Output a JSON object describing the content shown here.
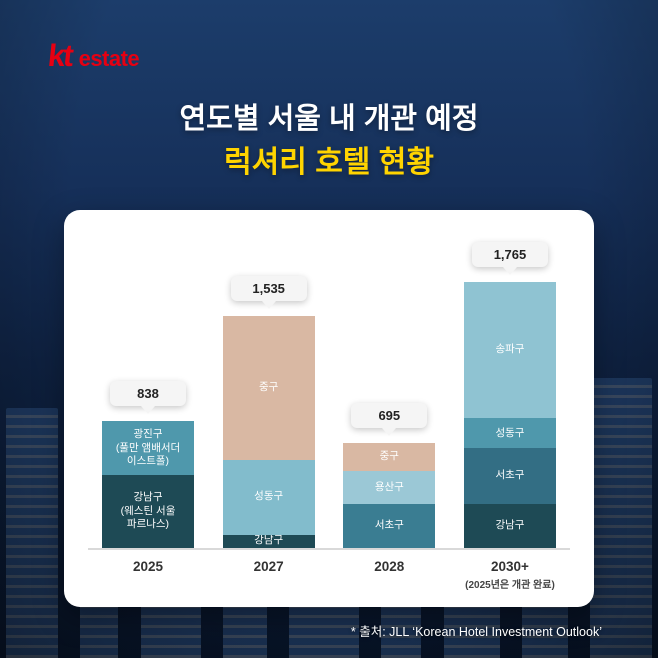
{
  "brand": {
    "kt": "kt",
    "estate": "estate"
  },
  "title": {
    "line1": "연도별 서울 내 개관 예정",
    "line2": "럭셔리 호텔 현황"
  },
  "source": "* 출처: JLL ‘Korean Hotel Investment Outlook’",
  "colors": {
    "brand_red": "#e60012",
    "accent_yellow": "#ffd400",
    "callout_bg": "#f5f5f5",
    "axis": "#d9d9d9",
    "background_navy": "#0f2344"
  },
  "chart_data": {
    "type": "bar",
    "stacked": true,
    "title": "연도별 서울 내 개관 예정 럭셔리 호텔 현황",
    "xlabel": "",
    "ylabel": "",
    "grid": false,
    "legend_position": "none",
    "categories": [
      "2025",
      "2027",
      "2028",
      "2030+"
    ],
    "category_notes": [
      "",
      "",
      "",
      "(2025년은 개관 완료)"
    ],
    "totals": [
      838,
      1535,
      695,
      1765
    ],
    "total_labels": [
      "838",
      "1,535",
      "695",
      "1,765"
    ],
    "bars": [
      {
        "category": "2025",
        "note": "",
        "total": 838,
        "total_label": "838",
        "segments": [
          {
            "district": "강남구",
            "hotel": "웨스틴 서울 파르나스",
            "label": "강남구\n(웨스틴 서울\n파르나스)",
            "value": 480,
            "color": "#1e4a55",
            "text_color": "#ffffff"
          },
          {
            "district": "광진구",
            "hotel": "풀만 앰배서더 이스트폴",
            "label": "광진구\n(풀만 앰배서더\n이스트폴)",
            "value": 358,
            "color": "#4f98ac",
            "text_color": "#ffffff"
          }
        ]
      },
      {
        "category": "2027",
        "note": "",
        "total": 1535,
        "total_label": "1,535",
        "segments": [
          {
            "district": "강남구",
            "label": "강남구",
            "value": 85,
            "color": "#1e4a55",
            "text_color": "#ffffff"
          },
          {
            "district": "성동구",
            "label": "성동구",
            "value": 500,
            "color": "#82bccc",
            "text_color": "#ffffff"
          },
          {
            "district": "중구",
            "label": "중구",
            "value": 950,
            "color": "#d9b8a3",
            "text_color": "#ffffff"
          }
        ]
      },
      {
        "category": "2028",
        "note": "",
        "total": 695,
        "total_label": "695",
        "segments": [
          {
            "district": "서초구",
            "label": "서초구",
            "value": 290,
            "color": "#3a7d92",
            "text_color": "#ffffff"
          },
          {
            "district": "용산구",
            "label": "용산구",
            "value": 216,
            "color": "#9bc8d6",
            "text_color": "#ffffff"
          },
          {
            "district": "중구",
            "label": "중구",
            "value": 189,
            "color": "#d9b8a3",
            "text_color": "#ffffff"
          }
        ]
      },
      {
        "category": "2030+",
        "note": "(2025년은 개관 완료)",
        "total": 1765,
        "total_label": "1,765",
        "segments": [
          {
            "district": "강남구",
            "label": "강남구",
            "value": 289,
            "color": "#1e4a55",
            "text_color": "#ffffff"
          },
          {
            "district": "서초구",
            "label": "서초구",
            "value": 369,
            "color": "#336e84",
            "text_color": "#ffffff"
          },
          {
            "district": "성동구",
            "label": "성동구",
            "value": 201,
            "color": "#4f98ac",
            "text_color": "#ffffff"
          },
          {
            "district": "송파구",
            "label": "송파구",
            "value": 906,
            "color": "#8fc3d2",
            "text_color": "#ffffff"
          }
        ]
      }
    ]
  }
}
